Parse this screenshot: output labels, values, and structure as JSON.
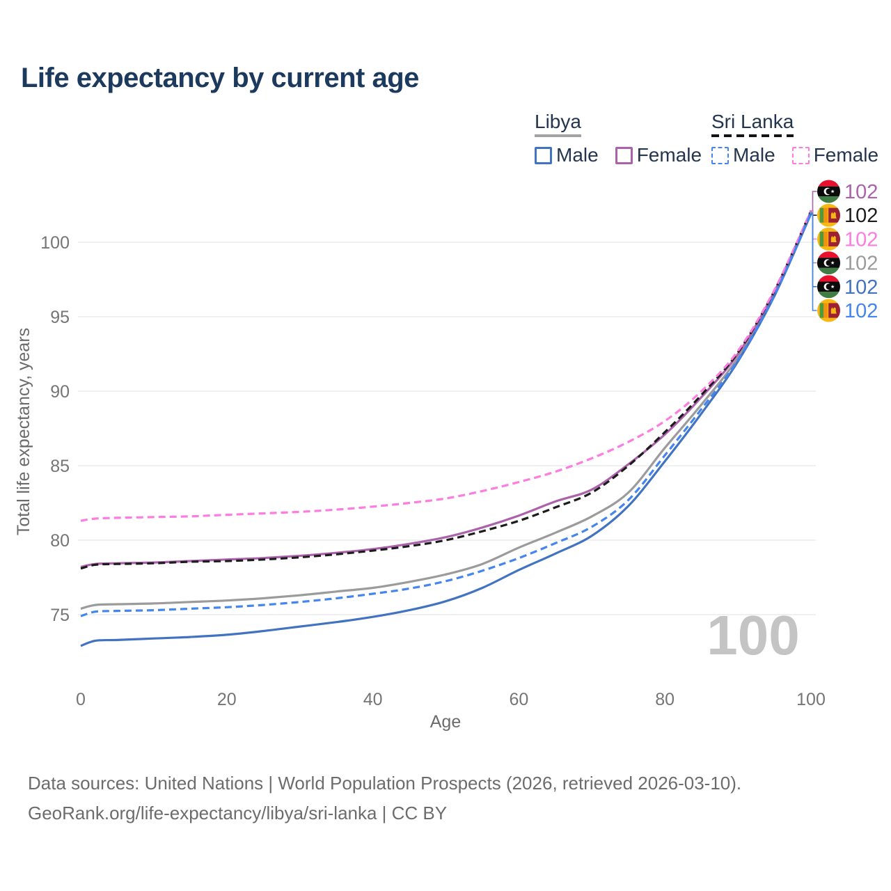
{
  "title": "Life expectancy by current age",
  "legend": {
    "groups": [
      {
        "id": "libya",
        "label": "Libya",
        "underline_style": "solid",
        "underline_color": "#a3a3a3",
        "items": [
          {
            "label": "Male",
            "series": "libya_male",
            "swatch": "solid"
          },
          {
            "label": "Female",
            "series": "libya_female",
            "swatch": "solid"
          }
        ]
      },
      {
        "id": "sri_lanka",
        "label": "Sri Lanka",
        "underline_style": "dashed",
        "underline_color": "#141414",
        "items": [
          {
            "label": "Male",
            "series": "sl_male",
            "swatch": "dashed"
          },
          {
            "label": "Female",
            "series": "sl_female",
            "swatch": "dashed"
          }
        ]
      }
    ]
  },
  "chart_data": {
    "type": "line",
    "title": "Life expectancy by current age",
    "xlabel": "Age",
    "ylabel": "Total life expectancy, years",
    "xticks": [
      0,
      20,
      40,
      60,
      80,
      100
    ],
    "yticks": [
      75,
      80,
      85,
      90,
      95,
      100
    ],
    "xlim": [
      0,
      100
    ],
    "ylim": [
      72,
      103
    ],
    "grid": true,
    "legend_position": "top-right",
    "x": [
      0,
      2,
      5,
      10,
      15,
      20,
      25,
      30,
      35,
      40,
      45,
      50,
      55,
      60,
      65,
      70,
      75,
      80,
      85,
      90,
      95,
      100
    ],
    "series": [
      {
        "id": "libya_total",
        "name": "Libya",
        "country": "Libya",
        "sex": "Both",
        "style": "solid",
        "color": "#9b9b9b",
        "values": [
          75.4,
          75.65,
          75.7,
          75.75,
          75.85,
          75.95,
          76.1,
          76.3,
          76.55,
          76.8,
          77.2,
          77.7,
          78.4,
          79.5,
          80.5,
          81.6,
          83.2,
          86.2,
          89.1,
          92.25,
          96.5,
          102.0
        ]
      },
      {
        "id": "libya_female",
        "name": "Libya Female",
        "country": "Libya",
        "sex": "Female",
        "style": "solid",
        "color": "#ab62ab",
        "values": [
          78.2,
          78.4,
          78.45,
          78.5,
          78.6,
          78.7,
          78.8,
          78.95,
          79.15,
          79.4,
          79.75,
          80.2,
          80.85,
          81.65,
          82.6,
          83.4,
          85.1,
          87.1,
          89.6,
          92.5,
          96.7,
          102.05
        ]
      },
      {
        "id": "libya_male",
        "name": "Libya Male",
        "country": "Libya",
        "sex": "Male",
        "style": "solid",
        "color": "#4273c2",
        "values": [
          72.9,
          73.25,
          73.3,
          73.4,
          73.5,
          73.65,
          73.9,
          74.2,
          74.5,
          74.85,
          75.3,
          75.9,
          76.8,
          78.0,
          79.1,
          80.3,
          82.3,
          85.3,
          88.5,
          92.0,
          96.4,
          101.9
        ]
      },
      {
        "id": "sl_total",
        "name": "Sri Lanka",
        "country": "Sri Lanka",
        "sex": "Both",
        "style": "dashed",
        "color": "#1c1c1c",
        "values": [
          78.1,
          78.35,
          78.4,
          78.45,
          78.55,
          78.6,
          78.7,
          78.85,
          79.05,
          79.3,
          79.6,
          80.0,
          80.6,
          81.3,
          82.2,
          83.2,
          85.0,
          87.25,
          89.75,
          92.6,
          96.75,
          102.1
        ]
      },
      {
        "id": "sl_female",
        "name": "Sri Lanka Female",
        "country": "Sri Lanka",
        "sex": "Female",
        "style": "dashed",
        "color": "#fc7ce0",
        "values": [
          81.3,
          81.45,
          81.5,
          81.55,
          81.6,
          81.7,
          81.8,
          81.9,
          82.05,
          82.25,
          82.5,
          82.8,
          83.3,
          83.9,
          84.6,
          85.5,
          86.6,
          88.0,
          90.0,
          92.7,
          96.8,
          102.1
        ]
      },
      {
        "id": "sl_male",
        "name": "Sri Lanka Male",
        "country": "Sri Lanka",
        "sex": "Male",
        "style": "dashed",
        "color": "#4485ef",
        "values": [
          74.9,
          75.2,
          75.25,
          75.3,
          75.4,
          75.5,
          75.65,
          75.85,
          76.1,
          76.4,
          76.75,
          77.25,
          77.95,
          78.8,
          79.8,
          80.9,
          82.7,
          85.7,
          88.8,
          92.1,
          96.45,
          101.95
        ]
      }
    ]
  },
  "end_labels": {
    "rows": [
      {
        "country": "libya",
        "series": "libya_female",
        "value": "102"
      },
      {
        "country": "sri_lanka",
        "series": "sl_total",
        "value": "102"
      },
      {
        "country": "sri_lanka",
        "series": "sl_female",
        "value": "102"
      },
      {
        "country": "libya",
        "series": "libya_total",
        "value": "102"
      },
      {
        "country": "libya",
        "series": "libya_male",
        "value": "102"
      },
      {
        "country": "sri_lanka",
        "series": "sl_male",
        "value": "102"
      }
    ]
  },
  "watermark": {
    "text": "100"
  },
  "footer": {
    "line1": "Data sources: United Nations | World Population Prospects (2026, retrieved 2026-03-10).",
    "line2": "GeoRank.org/life-expectancy/libya/sri-lanka | CC BY"
  },
  "colors": {
    "title_text": "#1c3a5e",
    "legend_text": "#24364f",
    "axis_text": "#757575",
    "gridline": "#ececec",
    "watermark": "#c4c4c4",
    "footer_text": "#6c6c6c"
  }
}
